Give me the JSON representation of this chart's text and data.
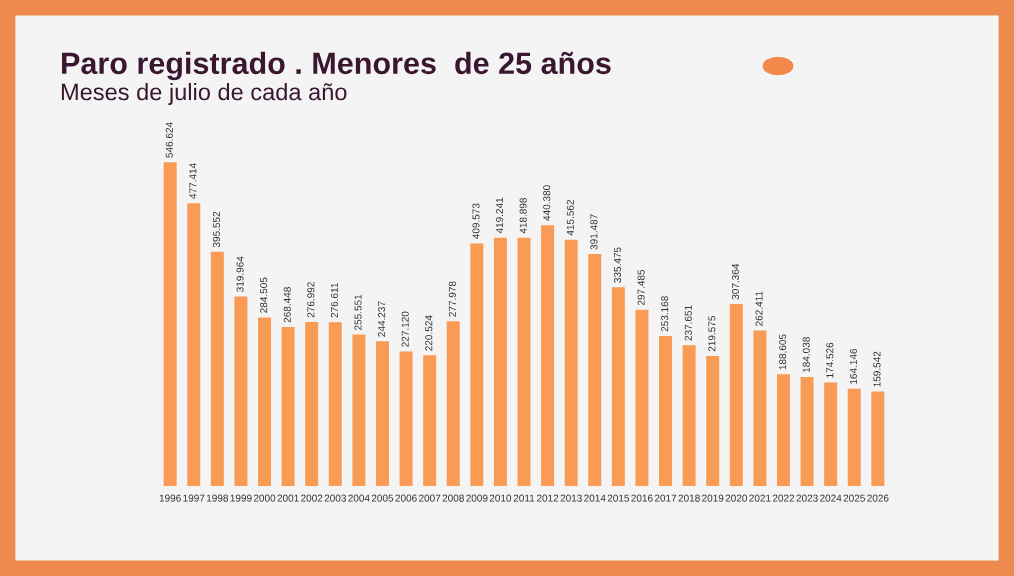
{
  "chart_data": {
    "type": "bar",
    "title": "Paro registrado . Menores  de 25 años",
    "subtitle": "Meses de julio de cada año",
    "categories": [
      "1996",
      "1997",
      "1998",
      "1999",
      "2000",
      "2001",
      "2002",
      "2003",
      "2004",
      "2005",
      "2006",
      "2007",
      "2008",
      "2009",
      "2010",
      "2011",
      "2012",
      "2013",
      "2014",
      "2015",
      "2016",
      "2017",
      "2018",
      "2019",
      "2020",
      "2021",
      "2022",
      "2023",
      "2024",
      "2025",
      "2026"
    ],
    "values": [
      546624,
      477414,
      395552,
      319964,
      284505,
      268448,
      276992,
      276611,
      255551,
      244237,
      227120,
      220524,
      277978,
      409573,
      419241,
      418898,
      440380,
      415562,
      391487,
      335475,
      297485,
      253168,
      237651,
      219575,
      307364,
      262411,
      188605,
      184038,
      174526,
      164146,
      159542
    ],
    "value_labels": [
      "546.624",
      "477.414",
      "395.552",
      "319.964",
      "284.505",
      "268.448",
      "276.992",
      "276.611",
      "255.551",
      "244.237",
      "227.120",
      "220.524",
      "277.978",
      "409.573",
      "419.241",
      "418.898",
      "440.380",
      "415.562",
      "391.487",
      "335.475",
      "297.485",
      "253.168",
      "237.651",
      "219.575",
      "307.364",
      "262.411",
      "188.605",
      "184.038",
      "174.526",
      "164.146",
      "159.542"
    ],
    "color": "#f99a55",
    "grid": false,
    "legend": false,
    "tick_labels": "x"
  }
}
